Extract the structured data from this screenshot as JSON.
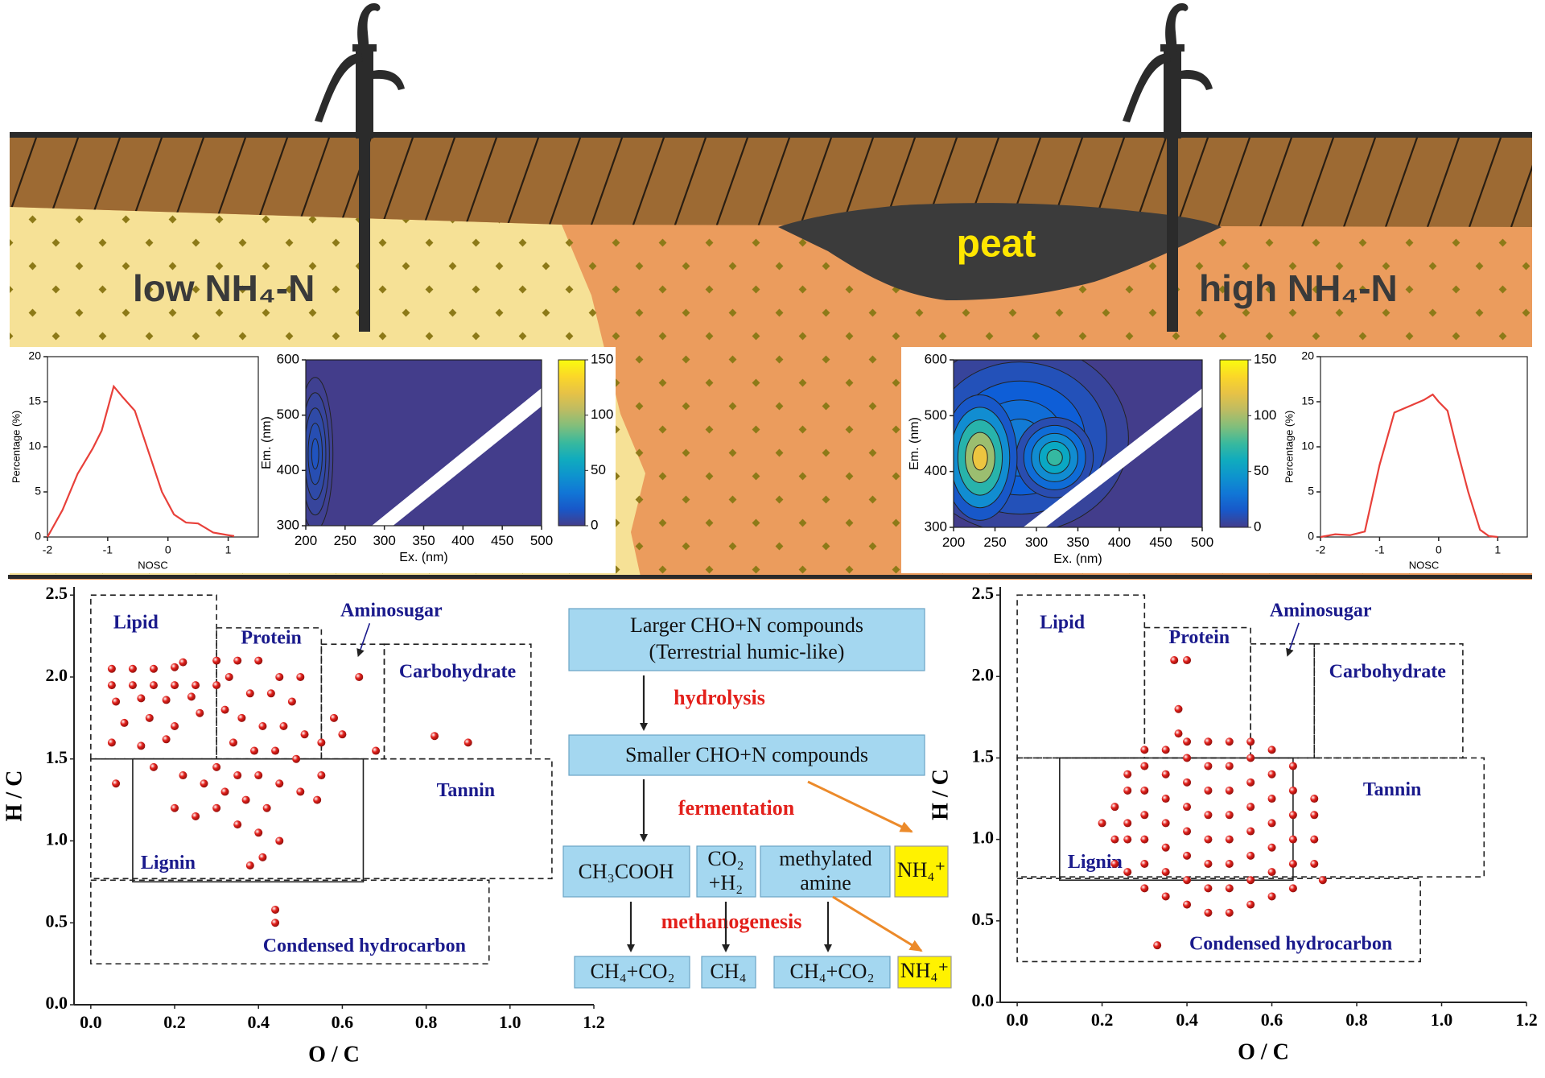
{
  "scene": {
    "left_label": "low NH₄-N",
    "peat": "peat",
    "right_label": "high NH₄-N"
  },
  "chart_data": [
    {
      "type": "line",
      "x": [
        -2,
        -1.75,
        -1.5,
        -1.25,
        -1.1,
        -0.9,
        -0.75,
        -0.55,
        -0.3,
        -0.1,
        0.1,
        0.3,
        0.5,
        0.75,
        1.0,
        1.1
      ],
      "values": [
        0,
        3,
        7,
        9.8,
        11.8,
        16.7,
        15.5,
        14,
        9,
        5,
        2.5,
        1.6,
        1.5,
        0.5,
        0.2,
        0.1
      ],
      "color": "#e8403a",
      "xlim": [
        -2,
        1.5
      ],
      "xticks": [
        -2,
        -1,
        0,
        1
      ],
      "ylim": [
        0,
        20
      ],
      "yticks": [
        0,
        5,
        10,
        15,
        20
      ],
      "xlabel": "NOSC",
      "ylabel": "Percentage (%)"
    },
    {
      "type": "contour",
      "peaks": [
        {
          "ex": 212,
          "em": 430,
          "intensity": 15
        }
      ],
      "xlim": [
        200,
        500
      ],
      "xticks": [
        200,
        250,
        300,
        350,
        400,
        450,
        500
      ],
      "ylim": [
        300,
        600
      ],
      "yticks": [
        300,
        400,
        500,
        600
      ],
      "clim": [
        0,
        150
      ],
      "cticks": [
        0,
        50,
        100,
        150
      ],
      "xlabel": "Ex. (nm)",
      "ylabel": "Em. (nm)"
    },
    {
      "type": "contour",
      "peaks": [
        {
          "ex": 280,
          "em": 460,
          "intensity": 40
        },
        {
          "ex": 322,
          "em": 425,
          "intensity": 90
        },
        {
          "ex": 232,
          "em": 425,
          "intensity": 150
        }
      ],
      "xlim": [
        200,
        500
      ],
      "xticks": [
        200,
        250,
        300,
        350,
        400,
        450,
        500
      ],
      "ylim": [
        300,
        600
      ],
      "yticks": [
        300,
        400,
        500,
        600
      ],
      "clim": [
        0,
        150
      ],
      "cticks": [
        0,
        50,
        100,
        150
      ],
      "xlabel": "Ex. (nm)",
      "ylabel": "Em. (nm)"
    },
    {
      "type": "line",
      "x": [
        -2,
        -1.75,
        -1.5,
        -1.25,
        -1,
        -0.75,
        -0.5,
        -0.25,
        -0.1,
        0,
        0.15,
        0.3,
        0.5,
        0.7,
        0.85,
        1
      ],
      "values": [
        0,
        0.3,
        0.2,
        0.6,
        8,
        13.8,
        14.5,
        15.2,
        15.8,
        15,
        14,
        10,
        5,
        0.8,
        0.1,
        0
      ],
      "color": "#e8403a",
      "xlim": [
        -2,
        1.5
      ],
      "xticks": [
        -2,
        -1,
        0,
        1
      ],
      "ylim": [
        0,
        20
      ],
      "yticks": [
        0,
        5,
        10,
        15,
        20
      ],
      "xlabel": "NOSC",
      "ylabel": "Percentage (%)"
    },
    {
      "type": "scatter",
      "color": "#e3201b",
      "x": [
        0.05,
        0.1,
        0.15,
        0.2,
        0.22,
        0.05,
        0.1,
        0.15,
        0.2,
        0.25,
        0.3,
        0.06,
        0.12,
        0.18,
        0.24,
        0.08,
        0.14,
        0.2,
        0.26,
        0.05,
        0.12,
        0.18,
        0.3,
        0.35,
        0.4,
        0.45,
        0.5,
        0.33,
        0.38,
        0.43,
        0.48,
        0.32,
        0.36,
        0.41,
        0.46,
        0.51,
        0.34,
        0.39,
        0.44,
        0.49,
        0.3,
        0.35,
        0.4,
        0.45,
        0.22,
        0.27,
        0.32,
        0.37,
        0.42,
        0.2,
        0.25,
        0.3,
        0.35,
        0.4,
        0.45,
        0.06,
        0.15,
        0.55,
        0.6,
        0.64,
        0.58,
        0.68,
        0.82,
        0.9,
        0.38,
        0.41,
        0.44,
        0.44,
        0.5,
        0.55,
        0.54
      ],
      "values": [
        2.05,
        2.05,
        2.05,
        2.06,
        2.09,
        1.95,
        1.95,
        1.95,
        1.95,
        1.95,
        1.95,
        1.85,
        1.87,
        1.86,
        1.88,
        1.72,
        1.75,
        1.7,
        1.78,
        1.6,
        1.58,
        1.62,
        2.1,
        2.1,
        2.1,
        2.0,
        2.0,
        2.0,
        1.9,
        1.9,
        1.85,
        1.8,
        1.75,
        1.7,
        1.7,
        1.65,
        1.6,
        1.55,
        1.55,
        1.5,
        1.45,
        1.4,
        1.4,
        1.35,
        1.4,
        1.35,
        1.3,
        1.25,
        1.2,
        1.2,
        1.15,
        1.2,
        1.1,
        1.05,
        1.0,
        1.35,
        1.45,
        1.6,
        1.65,
        2.0,
        1.75,
        1.55,
        1.64,
        1.6,
        0.85,
        0.9,
        0.58,
        0.5,
        1.3,
        1.4,
        1.25
      ],
      "regions": [
        {
          "name": "Lipid",
          "x": [
            0,
            0.3
          ],
          "y": [
            1.5,
            2.5
          ]
        },
        {
          "name": "Protein",
          "x": [
            0.3,
            0.55
          ],
          "y": [
            1.5,
            2.3
          ]
        },
        {
          "name": "Aminosugar",
          "x": [
            0.55,
            0.7
          ],
          "y": [
            1.5,
            2.2
          ]
        },
        {
          "name": "Carbohydrate",
          "x": [
            0.7,
            1.05
          ],
          "y": [
            1.5,
            2.2
          ]
        },
        {
          "name": "Tannin",
          "x": [
            0,
            1.1
          ],
          "y": [
            0.77,
            1.5
          ]
        },
        {
          "name": "Lignin",
          "x": [
            0.1,
            0.65
          ],
          "y": [
            0.75,
            1.5
          ],
          "solid": true
        },
        {
          "name": "Condensed hydrocarbon",
          "x": [
            0,
            0.95
          ],
          "y": [
            0.25,
            0.76
          ]
        }
      ],
      "xlim": [
        -0.04,
        1.2
      ],
      "xticks": [
        {
          "value": 0,
          "label": "0.0"
        },
        0.2,
        0.4,
        0.6,
        0.8,
        {
          "value": 1,
          "label": "1.0"
        },
        1.2
      ],
      "ylim": [
        0,
        2.55
      ],
      "yticks": [
        {
          "value": 0,
          "label": "0.0"
        },
        0.5,
        {
          "value": 1,
          "label": "1.0"
        },
        1.5,
        {
          "value": 2,
          "label": "2.0"
        },
        2.5
      ],
      "xlabel": "O / C",
      "ylabel": "H / C"
    },
    {
      "type": "scatter",
      "color": "#e3201b",
      "x": [
        0.23,
        0.23,
        0.23,
        0.26,
        0.26,
        0.26,
        0.26,
        0.26,
        0.3,
        0.3,
        0.3,
        0.3,
        0.3,
        0.3,
        0.3,
        0.35,
        0.35,
        0.35,
        0.35,
        0.35,
        0.35,
        0.35,
        0.4,
        0.4,
        0.4,
        0.4,
        0.4,
        0.4,
        0.4,
        0.4,
        0.45,
        0.45,
        0.45,
        0.45,
        0.45,
        0.45,
        0.45,
        0.45,
        0.5,
        0.5,
        0.5,
        0.5,
        0.5,
        0.5,
        0.5,
        0.5,
        0.55,
        0.55,
        0.55,
        0.55,
        0.55,
        0.55,
        0.55,
        0.55,
        0.6,
        0.6,
        0.6,
        0.6,
        0.6,
        0.6,
        0.6,
        0.65,
        0.65,
        0.65,
        0.65,
        0.65,
        0.65,
        0.7,
        0.7,
        0.7,
        0.7,
        0.33,
        0.38,
        0.38,
        0.4,
        0.37,
        0.72,
        0.2
      ],
      "values": [
        0.85,
        1.0,
        1.2,
        0.8,
        1.0,
        1.1,
        1.3,
        1.4,
        0.7,
        0.85,
        1.0,
        1.15,
        1.3,
        1.45,
        1.55,
        0.65,
        0.8,
        0.95,
        1.1,
        1.25,
        1.4,
        1.55,
        0.6,
        0.75,
        0.9,
        1.05,
        1.2,
        1.35,
        1.5,
        1.6,
        0.55,
        0.7,
        0.85,
        1.0,
        1.15,
        1.3,
        1.45,
        1.6,
        0.55,
        0.7,
        0.85,
        1.0,
        1.15,
        1.3,
        1.45,
        1.6,
        0.6,
        0.75,
        0.9,
        1.05,
        1.2,
        1.35,
        1.5,
        1.6,
        0.65,
        0.8,
        0.95,
        1.1,
        1.25,
        1.4,
        1.55,
        0.7,
        0.85,
        1.0,
        1.15,
        1.3,
        1.45,
        0.85,
        1.0,
        1.15,
        1.25,
        0.35,
        1.65,
        1.8,
        2.1,
        2.1,
        0.75,
        1.1
      ],
      "regions": [
        {
          "name": "Lipid",
          "x": [
            0,
            0.3
          ],
          "y": [
            1.5,
            2.5
          ]
        },
        {
          "name": "Protein",
          "x": [
            0.3,
            0.55
          ],
          "y": [
            1.5,
            2.3
          ]
        },
        {
          "name": "Aminosugar",
          "x": [
            0.55,
            0.7
          ],
          "y": [
            1.5,
            2.2
          ]
        },
        {
          "name": "Carbohydrate",
          "x": [
            0.7,
            1.05
          ],
          "y": [
            1.5,
            2.2
          ]
        },
        {
          "name": "Tannin",
          "x": [
            0,
            1.1
          ],
          "y": [
            0.77,
            1.5
          ]
        },
        {
          "name": "Lignin",
          "x": [
            0.1,
            0.65
          ],
          "y": [
            0.75,
            1.5
          ],
          "solid": true
        },
        {
          "name": "Condensed hydrocarbon",
          "x": [
            0,
            0.95
          ],
          "y": [
            0.25,
            0.76
          ]
        }
      ],
      "xlim": [
        -0.04,
        1.2
      ],
      "xticks": [
        {
          "value": 0,
          "label": "0.0"
        },
        0.2,
        0.4,
        0.6,
        0.8,
        {
          "value": 1,
          "label": "1.0"
        },
        1.2
      ],
      "ylim": [
        0,
        2.55
      ],
      "yticks": [
        {
          "value": 0,
          "label": "0.0"
        },
        0.5,
        {
          "value": 1,
          "label": "1.0"
        },
        1.5,
        {
          "value": 2,
          "label": "2.0"
        },
        2.5
      ],
      "xlabel": "O / C",
      "ylabel": "H / C"
    }
  ],
  "flow": {
    "boxes": [
      {
        "lines": [
          "Larger CHO+N compounds",
          "(Terrestrial humic-like)"
        ]
      },
      {
        "lines": [
          "Smaller CHO+N compounds"
        ]
      },
      {
        "lines": [
          "CH₃COOH"
        ]
      },
      {
        "lines": [
          "CO₂",
          "+H₂"
        ]
      },
      {
        "lines": [
          "methylated",
          "amine"
        ]
      },
      {
        "lines": [
          "NH₄⁺"
        ]
      },
      {
        "lines": [
          "CH₄+CO₂"
        ]
      },
      {
        "lines": [
          "CH₄"
        ]
      },
      {
        "lines": [
          "CH₄+CO₂"
        ]
      },
      {
        "lines": [
          "NH₄⁺"
        ]
      }
    ],
    "processes": [
      "hydrolysis",
      "fermentation",
      "methanogenesis"
    ]
  }
}
